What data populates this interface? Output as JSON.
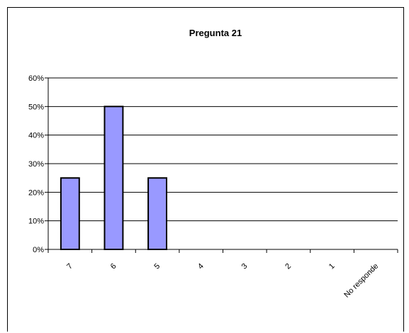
{
  "chart_data": {
    "type": "bar",
    "title": "Pregunta 21",
    "categories": [
      "7",
      "6",
      "5",
      "4",
      "3",
      "2",
      "1",
      "No responde"
    ],
    "values": [
      0.25,
      0.5,
      0.25,
      0,
      0,
      0,
      0,
      0
    ],
    "y_tick_labels": [
      "0%",
      "10%",
      "20%",
      "30%",
      "40%",
      "50%",
      "60%"
    ],
    "ylim": [
      0,
      0.6
    ],
    "grid": true,
    "legend": "none",
    "colors": {
      "bar_fill": "#9999ff",
      "bar_stroke": "#000000",
      "gridline": "#000000"
    }
  }
}
